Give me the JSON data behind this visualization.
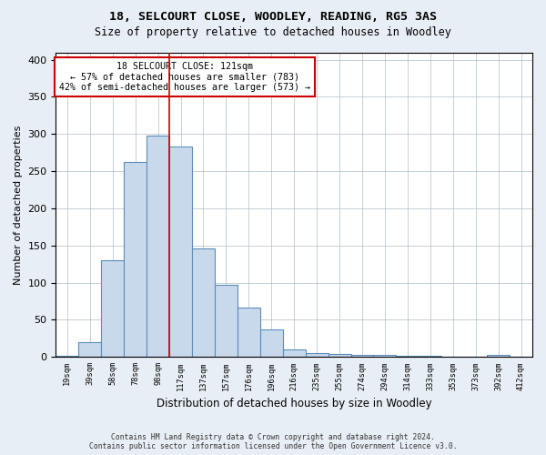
{
  "title1": "18, SELCOURT CLOSE, WOODLEY, READING, RG5 3AS",
  "title2": "Size of property relative to detached houses in Woodley",
  "xlabel": "Distribution of detached houses by size in Woodley",
  "ylabel": "Number of detached properties",
  "bin_labels": [
    "19sqm",
    "39sqm",
    "58sqm",
    "78sqm",
    "98sqm",
    "117sqm",
    "137sqm",
    "157sqm",
    "176sqm",
    "196sqm",
    "216sqm",
    "235sqm",
    "255sqm",
    "274sqm",
    "294sqm",
    "314sqm",
    "333sqm",
    "353sqm",
    "373sqm",
    "392sqm",
    "412sqm"
  ],
  "bar_heights": [
    2,
    20,
    130,
    263,
    298,
    283,
    146,
    97,
    67,
    37,
    10,
    5,
    4,
    3,
    3,
    1,
    1,
    0,
    0,
    3,
    0
  ],
  "bar_color": "#c9d9ec",
  "bar_edge_color": "#5b8db8",
  "property_value_bin": 5,
  "vline_color": "#cc0000",
  "annotation_line1": "18 SELCOURT CLOSE: 121sqm",
  "annotation_line2": "← 57% of detached houses are smaller (783)",
  "annotation_line3": "42% of semi-detached houses are larger (573) →",
  "annotation_box_edgecolor": "#cc0000",
  "ylim": [
    0,
    410
  ],
  "yticks": [
    0,
    50,
    100,
    150,
    200,
    250,
    300,
    350,
    400
  ],
  "footer1": "Contains HM Land Registry data © Crown copyright and database right 2024.",
  "footer2": "Contains public sector information licensed under the Open Government Licence v3.0.",
  "bg_color": "#e8eef5",
  "plot_bg_color": "#ffffff",
  "grid_color": "#b0bec8"
}
